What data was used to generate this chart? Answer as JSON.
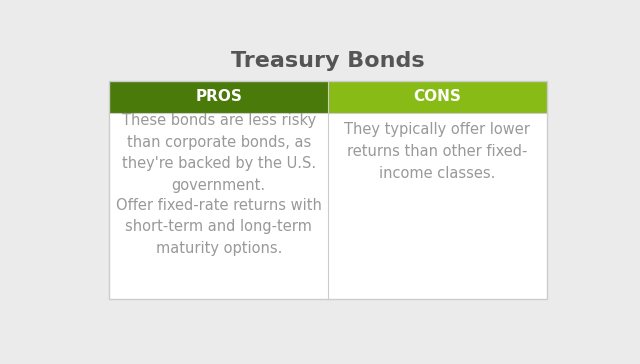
{
  "title": "Treasury Bonds",
  "title_fontsize": 16,
  "title_color": "#555555",
  "title_fontweight": "bold",
  "background_color": "#ebebeb",
  "table_bg_color": "#ffffff",
  "pros_header": "PROS",
  "cons_header": "CONS",
  "pros_header_bg": "#4a7a0a",
  "cons_header_bg": "#88bb15",
  "header_text_color": "#ffffff",
  "header_fontsize": 11,
  "divider_color": "#cccccc",
  "pros_items": [
    "These bonds are less risky\nthan corporate bonds, as\nthey're backed by the U.S.\ngovernment.",
    "Offer fixed-rate returns with\nshort-term and long-term\nmaturity options."
  ],
  "cons_items": [
    "They typically offer lower\nreturns than other fixed-\nincome classes."
  ],
  "body_text_color": "#999999",
  "body_fontsize": 10.5
}
